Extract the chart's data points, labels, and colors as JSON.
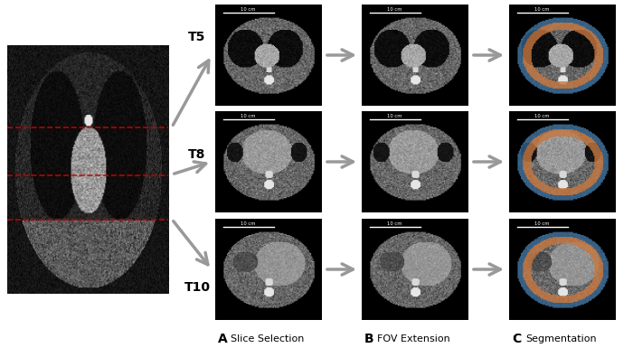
{
  "fig_width": 7.0,
  "fig_height": 3.85,
  "bg_color": "#ffffff",
  "label_A": "A",
  "label_B": "B",
  "label_C": "C",
  "text_A": "Slice Selection",
  "text_B": "FOV Extension",
  "text_C": "Segmentation",
  "labels_T": [
    "T5",
    "T8",
    "T10"
  ],
  "arrow_color": "#999999",
  "red_dash_color": "#cc0000",
  "scale_bar_text": "10 cm",
  "orange_color": "#c87941",
  "blue_color": "#2b5f8c"
}
